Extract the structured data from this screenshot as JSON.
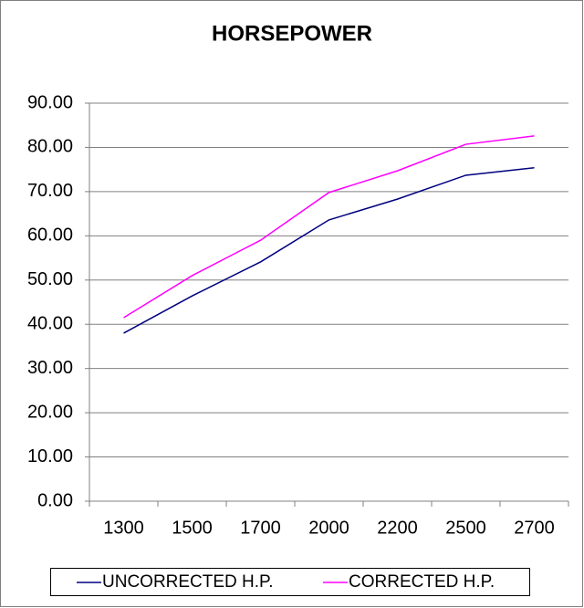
{
  "chart_data": {
    "type": "line",
    "title": "HORSEPOWER",
    "categories": [
      "1300",
      "1500",
      "1700",
      "2000",
      "2200",
      "2500",
      "2700"
    ],
    "series": [
      {
        "name": "UNCORRECTED H.P.",
        "color": "#000080",
        "values": [
          38.0,
          46.4,
          54.1,
          63.6,
          68.3,
          73.7,
          75.4
        ]
      },
      {
        "name": "CORRECTED H.P.",
        "color": "#ff00ff",
        "values": [
          41.5,
          51.0,
          59.0,
          69.8,
          74.7,
          80.7,
          82.6
        ]
      }
    ],
    "ylim": [
      0,
      90
    ],
    "yticks": [
      {
        "value": 0,
        "label": "0.00"
      },
      {
        "value": 10,
        "label": "10.00"
      },
      {
        "value": 20,
        "label": "20.00"
      },
      {
        "value": 30,
        "label": "30.00"
      },
      {
        "value": 40,
        "label": "40.00"
      },
      {
        "value": 50,
        "label": "50.00"
      },
      {
        "value": 60,
        "label": "60.00"
      },
      {
        "value": 70,
        "label": "70.00"
      },
      {
        "value": 80,
        "label": "80.00"
      },
      {
        "value": 90,
        "label": "90.00"
      }
    ],
    "grid": true,
    "legend": "bottom"
  }
}
